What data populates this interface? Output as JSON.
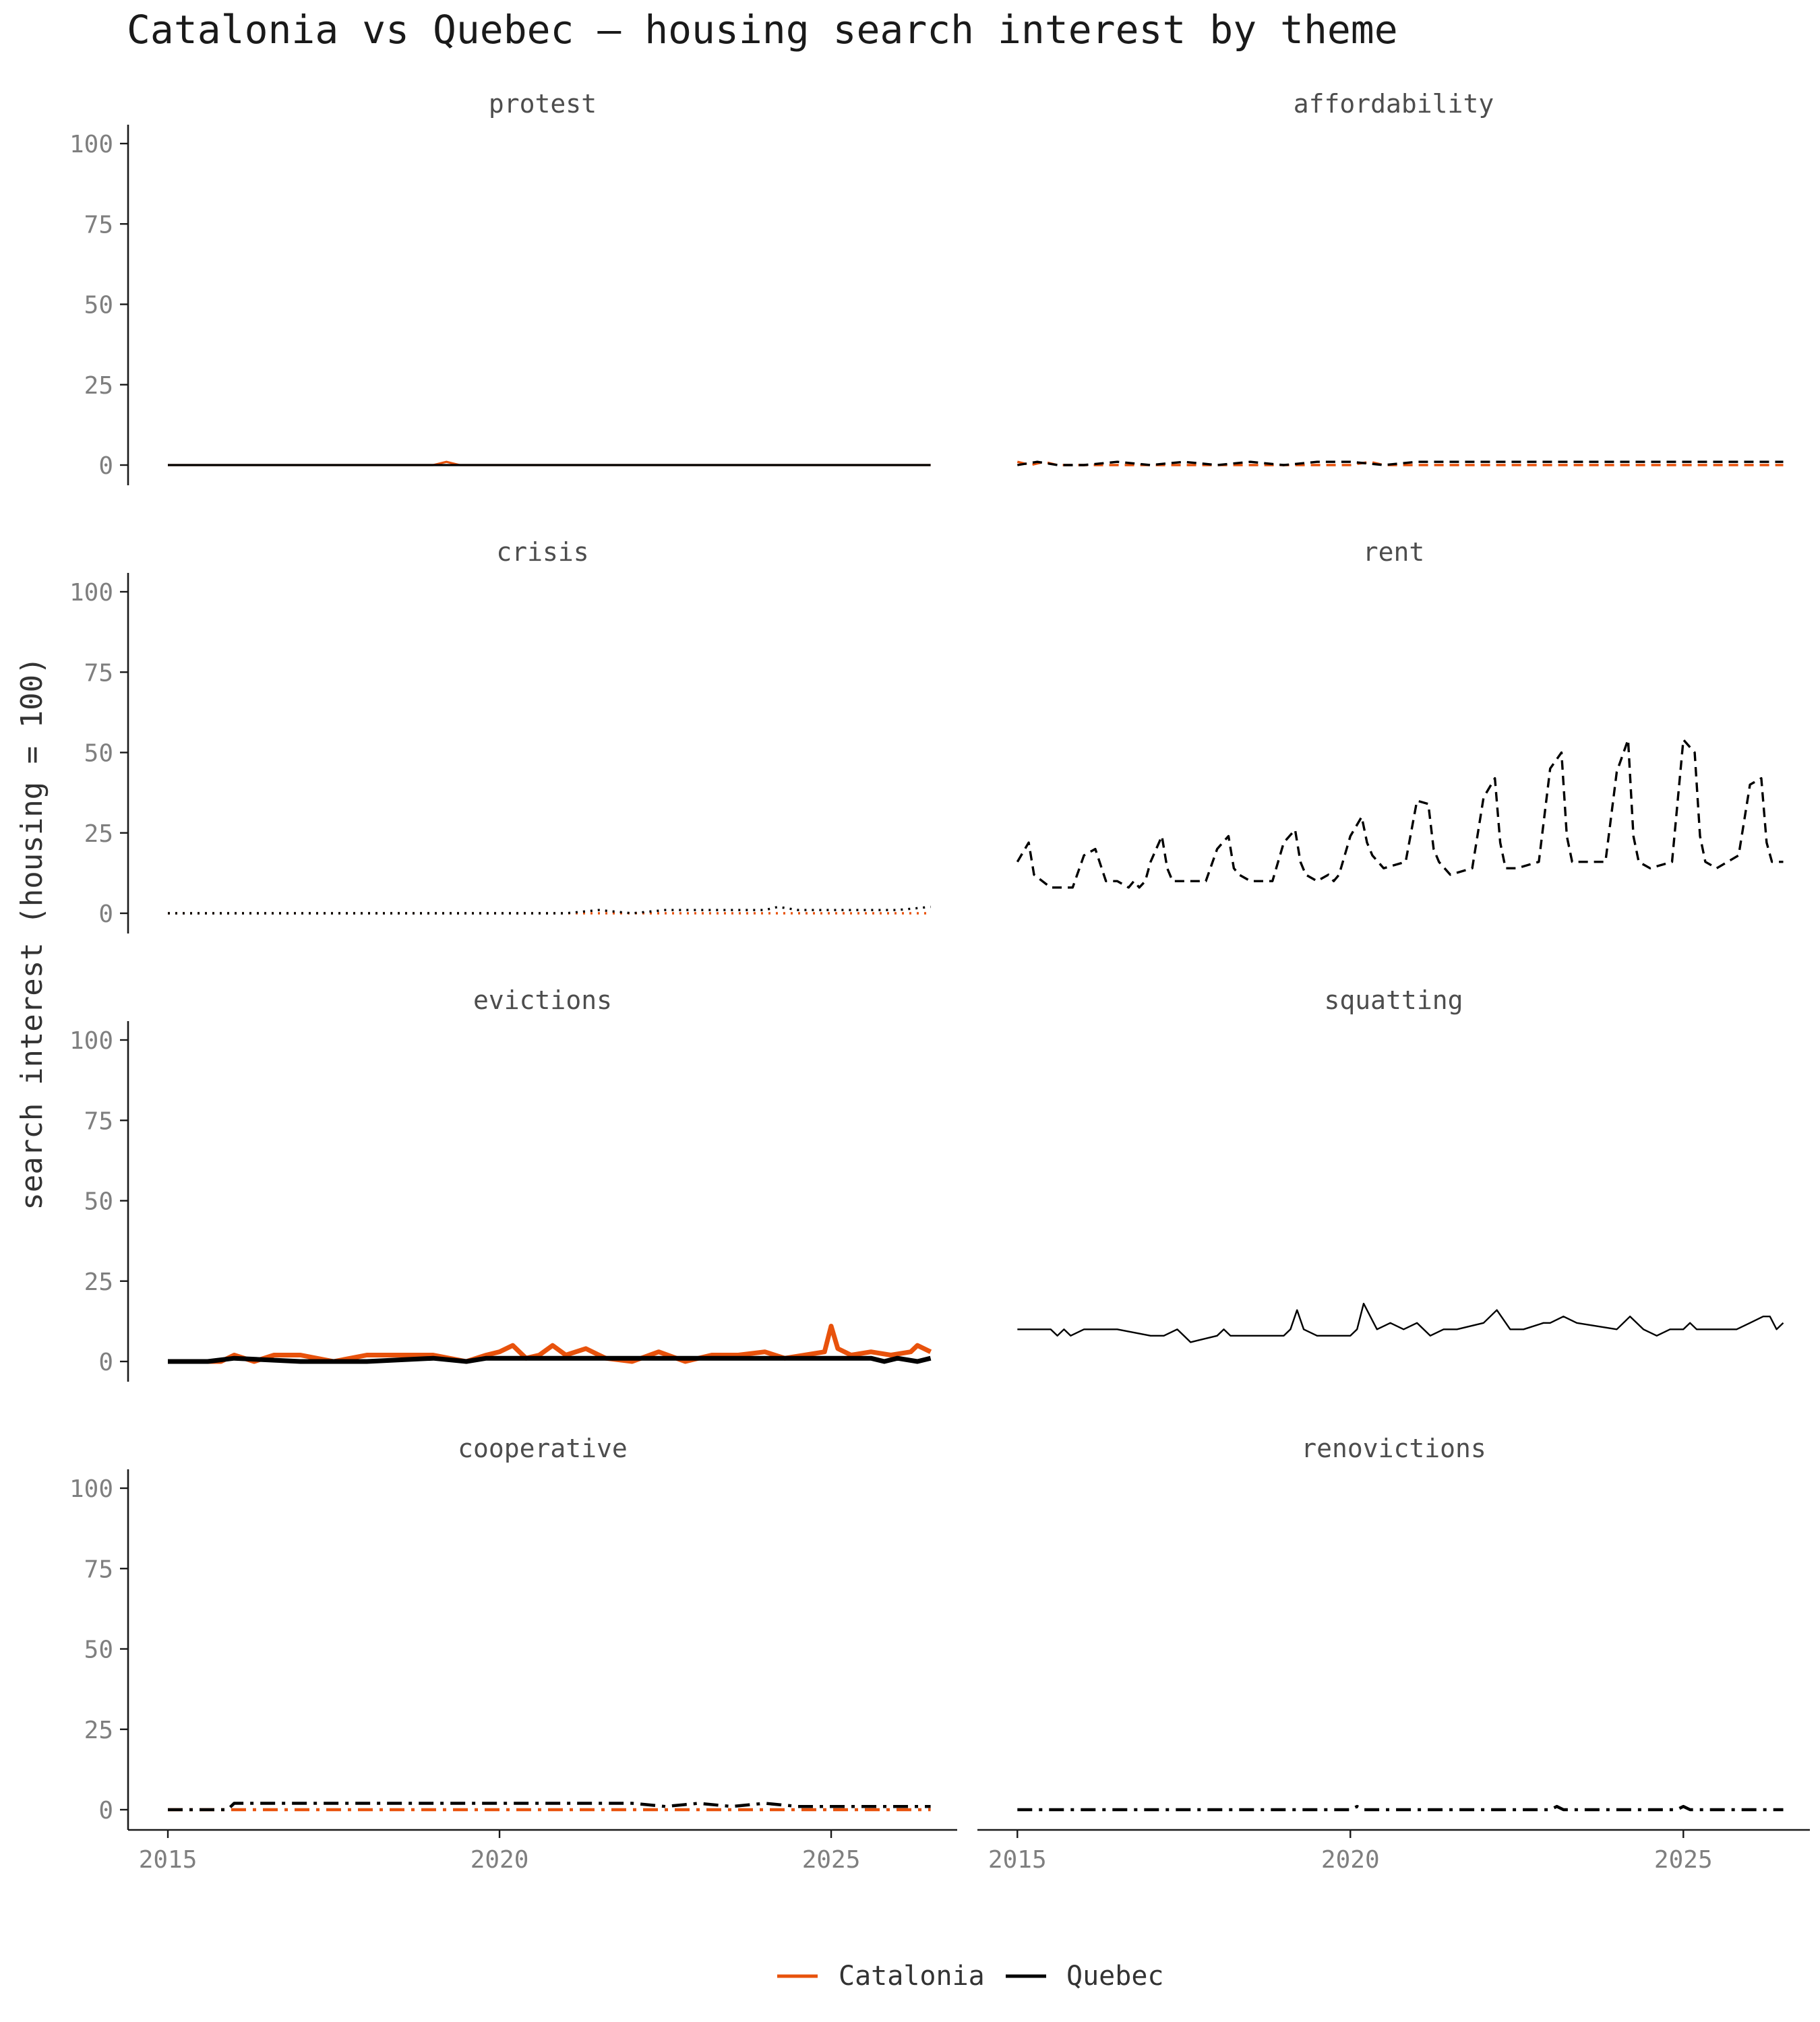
{
  "chart_data": {
    "type": "line",
    "title": "Catalonia vs Quebec — housing search interest by theme",
    "ylabel": "search interest (housing = 100)",
    "xlabel": "",
    "ylim": [
      0,
      100
    ],
    "xlim": [
      2014.4,
      2026.9
    ],
    "x_ticks": [
      "2015",
      "2020",
      "2025"
    ],
    "y_ticks": [
      "0",
      "25",
      "50",
      "75",
      "100"
    ],
    "legend": {
      "position": "bottom",
      "entries": [
        {
          "name": "Catalonia",
          "color": "#e8520c"
        },
        {
          "name": "Quebec",
          "color": "#000000"
        }
      ]
    },
    "panels": [
      {
        "title": "protest",
        "line_style": "solid",
        "series": [
          {
            "name": "Catalonia",
            "x": [
              2015.0,
              2019.0,
              2019.2,
              2019.4,
              2026.5
            ],
            "values": [
              0,
              0,
              1,
              0,
              0
            ]
          },
          {
            "name": "Quebec",
            "x": [
              2015.0,
              2026.5
            ],
            "values": [
              0,
              0
            ]
          }
        ]
      },
      {
        "title": "affordability",
        "line_style": "dashed",
        "series": [
          {
            "name": "Catalonia",
            "x": [
              2015.0,
              2015.2,
              2015.4,
              2015.6,
              2016.0,
              2017.0,
              2018.0,
              2019.0,
              2020.0,
              2020.3,
              2020.5,
              2021.0,
              2022.0,
              2023.0,
              2024.0,
              2025.0,
              2026.0,
              2026.5
            ],
            "values": [
              1,
              0,
              1,
              0,
              0,
              0,
              0,
              0,
              0,
              1,
              0,
              0,
              0,
              0,
              0,
              0,
              0,
              0
            ]
          },
          {
            "name": "Quebec",
            "x": [
              2015.0,
              2015.3,
              2015.6,
              2016.0,
              2016.5,
              2017.0,
              2017.5,
              2018.0,
              2018.5,
              2019.0,
              2019.5,
              2020.0,
              2020.5,
              2021.0,
              2022.0,
              2023.0,
              2024.0,
              2025.0,
              2026.0,
              2026.5
            ],
            "values": [
              0,
              1,
              0,
              0,
              1,
              0,
              1,
              0,
              1,
              0,
              1,
              1,
              0,
              1,
              1,
              1,
              1,
              1,
              1,
              1
            ]
          }
        ]
      },
      {
        "title": "crisis",
        "line_style": "dotted",
        "series": [
          {
            "name": "Catalonia",
            "x": [
              2015.0,
              2019.5,
              2020.0,
              2021.0,
              2022.0,
              2023.0,
              2024.0,
              2025.0,
              2026.5
            ],
            "values": [
              0,
              0,
              0,
              0,
              0,
              0,
              0,
              0,
              0
            ]
          },
          {
            "name": "Quebec",
            "x": [
              2015.0,
              2019.5,
              2020.0,
              2020.5,
              2021.0,
              2021.5,
              2022.0,
              2022.5,
              2023.0,
              2023.5,
              2024.0,
              2024.2,
              2024.5,
              2025.0,
              2025.5,
              2026.0,
              2026.5
            ],
            "values": [
              0,
              0,
              0,
              0,
              0,
              1,
              0,
              1,
              1,
              1,
              1,
              2,
              1,
              1,
              1,
              1,
              2
            ]
          }
        ]
      },
      {
        "title": "rent",
        "line_style": "dashed",
        "series": [
          {
            "name": "Quebec",
            "x": [
              2015.0,
              2015.17,
              2015.25,
              2015.5,
              2015.83,
              2016.0,
              2016.17,
              2016.25,
              2016.33,
              2016.5,
              2016.67,
              2016.75,
              2016.83,
              2016.92,
              2017.0,
              2017.17,
              2017.25,
              2017.33,
              2017.5,
              2017.83,
              2018.0,
              2018.17,
              2018.25,
              2018.33,
              2018.5,
              2018.83,
              2019.0,
              2019.17,
              2019.25,
              2019.33,
              2019.5,
              2019.67,
              2019.75,
              2019.83,
              2020.0,
              2020.17,
              2020.25,
              2020.33,
              2020.5,
              2020.83,
              2021.0,
              2021.17,
              2021.25,
              2021.33,
              2021.5,
              2021.83,
              2022.0,
              2022.17,
              2022.25,
              2022.33,
              2022.5,
              2022.83,
              2023.0,
              2023.17,
              2023.25,
              2023.33,
              2023.5,
              2023.83,
              2024.0,
              2024.17,
              2024.25,
              2024.33,
              2024.5,
              2024.83,
              2025.0,
              2025.17,
              2025.25,
              2025.33,
              2025.5,
              2025.83,
              2026.0,
              2026.17,
              2026.25,
              2026.33,
              2026.5
            ],
            "values": [
              16,
              22,
              12,
              8,
              8,
              18,
              20,
              15,
              10,
              10,
              8,
              10,
              8,
              10,
              16,
              24,
              14,
              10,
              10,
              10,
              20,
              24,
              14,
              12,
              10,
              10,
              22,
              26,
              16,
              12,
              10,
              12,
              10,
              12,
              24,
              30,
              22,
              18,
              14,
              16,
              35,
              34,
              20,
              16,
              12,
              14,
              36,
              42,
              22,
              14,
              14,
              16,
              45,
              50,
              24,
              16,
              16,
              16,
              44,
              54,
              24,
              16,
              14,
              16,
              54,
              50,
              24,
              16,
              14,
              18,
              40,
              42,
              22,
              16,
              16
            ]
          }
        ]
      },
      {
        "title": "evictions",
        "line_style": "solid-thick",
        "series": [
          {
            "name": "Catalonia",
            "x": [
              2015.0,
              2015.8,
              2016.0,
              2016.3,
              2016.6,
              2017.0,
              2017.5,
              2018.0,
              2018.5,
              2019.0,
              2019.5,
              2019.8,
              2020.0,
              2020.2,
              2020.4,
              2020.6,
              2020.8,
              2021.0,
              2021.3,
              2021.6,
              2022.0,
              2022.4,
              2022.8,
              2023.2,
              2023.6,
              2024.0,
              2024.3,
              2024.6,
              2024.9,
              2025.0,
              2025.1,
              2025.3,
              2025.6,
              2025.9,
              2026.2,
              2026.3,
              2026.5
            ],
            "values": [
              0,
              0,
              2,
              0,
              2,
              2,
              0,
              2,
              2,
              2,
              0,
              2,
              3,
              5,
              1,
              2,
              5,
              2,
              4,
              1,
              0,
              3,
              0,
              2,
              2,
              3,
              1,
              2,
              3,
              11,
              4,
              2,
              3,
              2,
              3,
              5,
              3
            ]
          },
          {
            "name": "Quebec",
            "x": [
              2015.0,
              2015.6,
              2016.0,
              2017.0,
              2018.0,
              2019.0,
              2019.5,
              2019.8,
              2020.0,
              2021.0,
              2022.0,
              2023.0,
              2024.0,
              2025.0,
              2025.6,
              2025.8,
              2026.0,
              2026.3,
              2026.5
            ],
            "values": [
              0,
              0,
              1,
              0,
              0,
              1,
              0,
              1,
              1,
              1,
              1,
              1,
              1,
              1,
              1,
              0,
              1,
              0,
              1
            ]
          }
        ]
      },
      {
        "title": "squatting",
        "line_style": "solid-thin",
        "series": [
          {
            "name": "Quebec",
            "x": [
              2015.0,
              2015.5,
              2015.6,
              2015.7,
              2015.8,
              2016.0,
              2016.5,
              2017.0,
              2017.2,
              2017.4,
              2017.5,
              2017.6,
              2018.0,
              2018.1,
              2018.2,
              2018.5,
              2019.0,
              2019.1,
              2019.2,
              2019.3,
              2019.5,
              2020.0,
              2020.1,
              2020.2,
              2020.4,
              2020.6,
              2020.8,
              2021.0,
              2021.2,
              2021.4,
              2021.6,
              2022.0,
              2022.2,
              2022.4,
              2022.6,
              2022.9,
              2023.0,
              2023.2,
              2023.4,
              2024.0,
              2024.2,
              2024.4,
              2024.6,
              2024.8,
              2025.0,
              2025.1,
              2025.2,
              2025.4,
              2025.8,
              2026.0,
              2026.2,
              2026.3,
              2026.4,
              2026.5
            ],
            "values": [
              10,
              10,
              8,
              10,
              8,
              10,
              10,
              8,
              8,
              10,
              8,
              6,
              8,
              10,
              8,
              8,
              8,
              10,
              16,
              10,
              8,
              8,
              10,
              18,
              10,
              12,
              10,
              12,
              8,
              10,
              10,
              12,
              16,
              10,
              10,
              12,
              12,
              14,
              12,
              10,
              14,
              10,
              8,
              10,
              10,
              12,
              10,
              10,
              10,
              12,
              14,
              14,
              10,
              12
            ]
          }
        ]
      },
      {
        "title": "cooperative",
        "line_style": "dashdot",
        "series": [
          {
            "name": "Catalonia",
            "x": [
              2015.0,
              2016.0,
              2017.0,
              2018.0,
              2019.0,
              2020.0,
              2021.0,
              2022.0,
              2023.0,
              2024.0,
              2025.0,
              2026.5
            ],
            "values": [
              0,
              0,
              0,
              0,
              0,
              0,
              0,
              0,
              0,
              0,
              0,
              0
            ]
          },
          {
            "name": "Quebec",
            "x": [
              2015.0,
              2015.9,
              2016.0,
              2016.5,
              2017.0,
              2017.5,
              2018.0,
              2018.5,
              2019.0,
              2019.5,
              2020.0,
              2020.5,
              2021.0,
              2021.5,
              2022.0,
              2022.5,
              2023.0,
              2023.5,
              2024.0,
              2024.5,
              2025.0,
              2025.5,
              2026.0,
              2026.5
            ],
            "values": [
              0,
              0,
              2,
              2,
              2,
              2,
              2,
              2,
              2,
              2,
              2,
              2,
              2,
              2,
              2,
              1,
              2,
              1,
              2,
              1,
              1,
              1,
              1,
              1
            ]
          }
        ]
      },
      {
        "title": "renovictions",
        "line_style": "dashdot",
        "series": [
          {
            "name": "Quebec",
            "x": [
              2015.0,
              2016.0,
              2017.0,
              2018.0,
              2019.0,
              2020.0,
              2020.1,
              2020.2,
              2021.0,
              2022.0,
              2023.0,
              2023.1,
              2023.2,
              2024.0,
              2024.9,
              2025.0,
              2025.1,
              2025.3,
              2026.0,
              2026.5
            ],
            "values": [
              0,
              0,
              0,
              0,
              0,
              0,
              1,
              0,
              0,
              0,
              0,
              1,
              0,
              0,
              0,
              1,
              0,
              0,
              0,
              0
            ]
          }
        ]
      }
    ]
  }
}
